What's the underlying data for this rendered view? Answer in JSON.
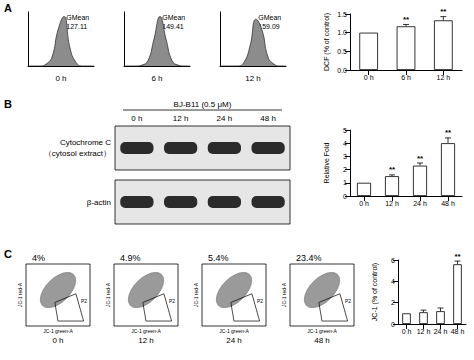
{
  "chart_data": [
    {
      "type": "area",
      "x": [
        0,
        1,
        2,
        3,
        4,
        5,
        6,
        7,
        8,
        9,
        10,
        11
      ],
      "values": [
        0,
        0,
        0,
        2,
        10,
        40,
        55,
        20,
        4,
        0,
        0,
        0
      ],
      "xlim": [
        0,
        11
      ],
      "ylim": [
        0,
        60
      ],
      "tick_labels": false,
      "color": "#8c8c8c",
      "xlabel": "0 h",
      "annotation": "GMean",
      "annotation_value": 127.11
    },
    {
      "type": "area",
      "x": [
        0,
        1,
        2,
        3,
        4,
        5,
        6,
        7,
        8,
        9,
        10,
        11
      ],
      "values": [
        0,
        0,
        0,
        1,
        6,
        30,
        55,
        30,
        6,
        1,
        0,
        0
      ],
      "xlim": [
        0,
        11
      ],
      "ylim": [
        0,
        60
      ],
      "tick_labels": false,
      "color": "#8c8c8c",
      "xlabel": "6 h",
      "annotation": "GMean",
      "annotation_value": 149.41
    },
    {
      "type": "area",
      "x": [
        0,
        1,
        2,
        3,
        4,
        5,
        6,
        7,
        8,
        9,
        10,
        11
      ],
      "values": [
        0,
        0,
        0,
        0,
        4,
        22,
        52,
        40,
        10,
        2,
        0,
        0
      ],
      "xlim": [
        0,
        11
      ],
      "ylim": [
        0,
        60
      ],
      "tick_labels": false,
      "color": "#8c8c8c",
      "xlabel": "12 h",
      "annotation": "GMean",
      "annotation_value": 159.09
    },
    {
      "type": "bar",
      "categories": [
        "0 h",
        "6 h",
        "12 h"
      ],
      "values": [
        1.0,
        1.17,
        1.33
      ],
      "errors": [
        0,
        0.05,
        0.1
      ],
      "annotations": [
        null,
        "**",
        "**"
      ],
      "ylabel": "DCF (% of control)",
      "ylim": [
        0,
        1.5
      ],
      "yticks": [
        {
          "value": 0,
          "label": "0.0"
        },
        {
          "value": 0.5,
          "label": "0.5"
        },
        {
          "value": 1,
          "label": "1.0"
        },
        {
          "value": 1.5,
          "label": "1.5"
        }
      ],
      "color": "#ffffff",
      "grid": false
    },
    {
      "type": "bar",
      "categories": [
        "0 h",
        "12 h",
        "24 h",
        "48 h"
      ],
      "values": [
        1.0,
        1.5,
        2.3,
        4.0
      ],
      "errors": [
        0,
        0.1,
        0.2,
        0.4
      ],
      "annotations": [
        null,
        "**",
        "**",
        "**"
      ],
      "ylabel": "Relative Fold",
      "ylim": [
        0,
        5
      ],
      "yticks": [
        0,
        1,
        2,
        3,
        4,
        5
      ],
      "color": "#ffffff",
      "grid": false
    },
    {
      "type": "bar",
      "categories": [
        "0 h",
        "12 h",
        "24 h",
        "48 h"
      ],
      "values": [
        1.0,
        1.1,
        1.2,
        5.6
      ],
      "errors": [
        0,
        0.2,
        0.3,
        0.3
      ],
      "annotations": [
        null,
        null,
        null,
        "**"
      ],
      "ylabel": "JC-1 (% of control)",
      "ylim": [
        0,
        6
      ],
      "yticks": [
        0,
        2,
        4,
        6
      ],
      "color": "#ffffff",
      "grid": false
    }
  ],
  "panels": [
    "A",
    "B",
    "C"
  ],
  "blot": {
    "treatment": "BJ-B11 (0.5 μM)",
    "lanes": [
      "0 h",
      "12 h",
      "24 h",
      "48 h"
    ],
    "rows": [
      {
        "label": [
          "Cytochrome C",
          "（cytosol extract）"
        ]
      },
      {
        "label": [
          "β-actin"
        ]
      }
    ]
  },
  "flow_plots": {
    "x_label": "JC-1 green-A",
    "y_label": "JC-1 red-A",
    "gate": "P2",
    "plots": [
      {
        "label": "0 h",
        "gate_label": "4%"
      },
      {
        "label": "12 h",
        "gate_label": "4.9%"
      },
      {
        "label": "24 h",
        "gate_label": "5.4%"
      },
      {
        "label": "48 h",
        "gate_label": "23.4%"
      }
    ]
  }
}
